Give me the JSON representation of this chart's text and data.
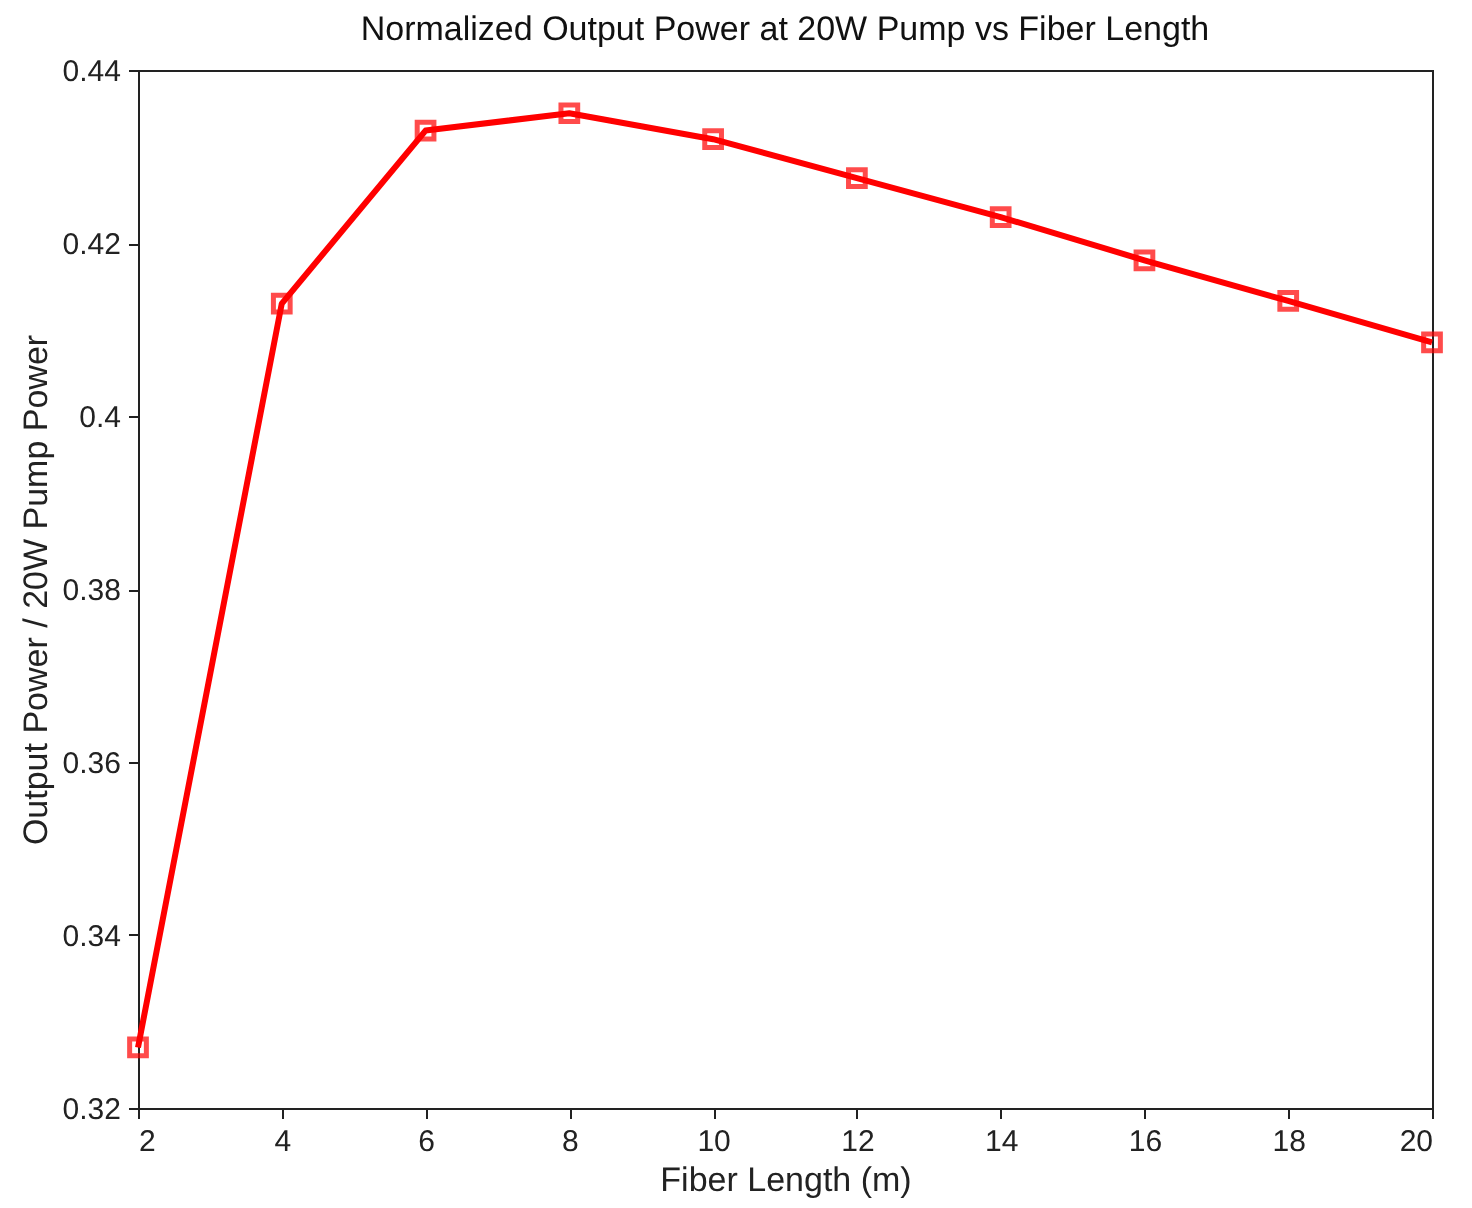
{
  "chart_data": {
    "type": "line",
    "title": "Normalized Output Power at 20W Pump vs Fiber Length",
    "xlabel": "Fiber Length (m)",
    "ylabel": "Output Power / 20W Pump Power",
    "x": [
      2,
      4,
      6,
      8,
      10,
      12,
      14,
      16,
      18,
      20
    ],
    "series": [
      {
        "color": "#ff0000",
        "values": [
          0.327,
          0.413,
          0.433,
          0.435,
          0.432,
          0.4275,
          0.423,
          0.418,
          0.4133,
          0.4085
        ]
      }
    ],
    "xlim": [
      2,
      20
    ],
    "xticks": [
      2,
      4,
      6,
      8,
      10,
      12,
      14,
      16,
      18,
      20
    ],
    "ylim": [
      0.32,
      0.44
    ],
    "yticks": [
      0.32,
      0.34,
      0.36,
      0.38,
      0.4,
      0.42,
      0.44
    ],
    "marker": "square",
    "line_style": "solid",
    "grid": false,
    "legend": false
  }
}
